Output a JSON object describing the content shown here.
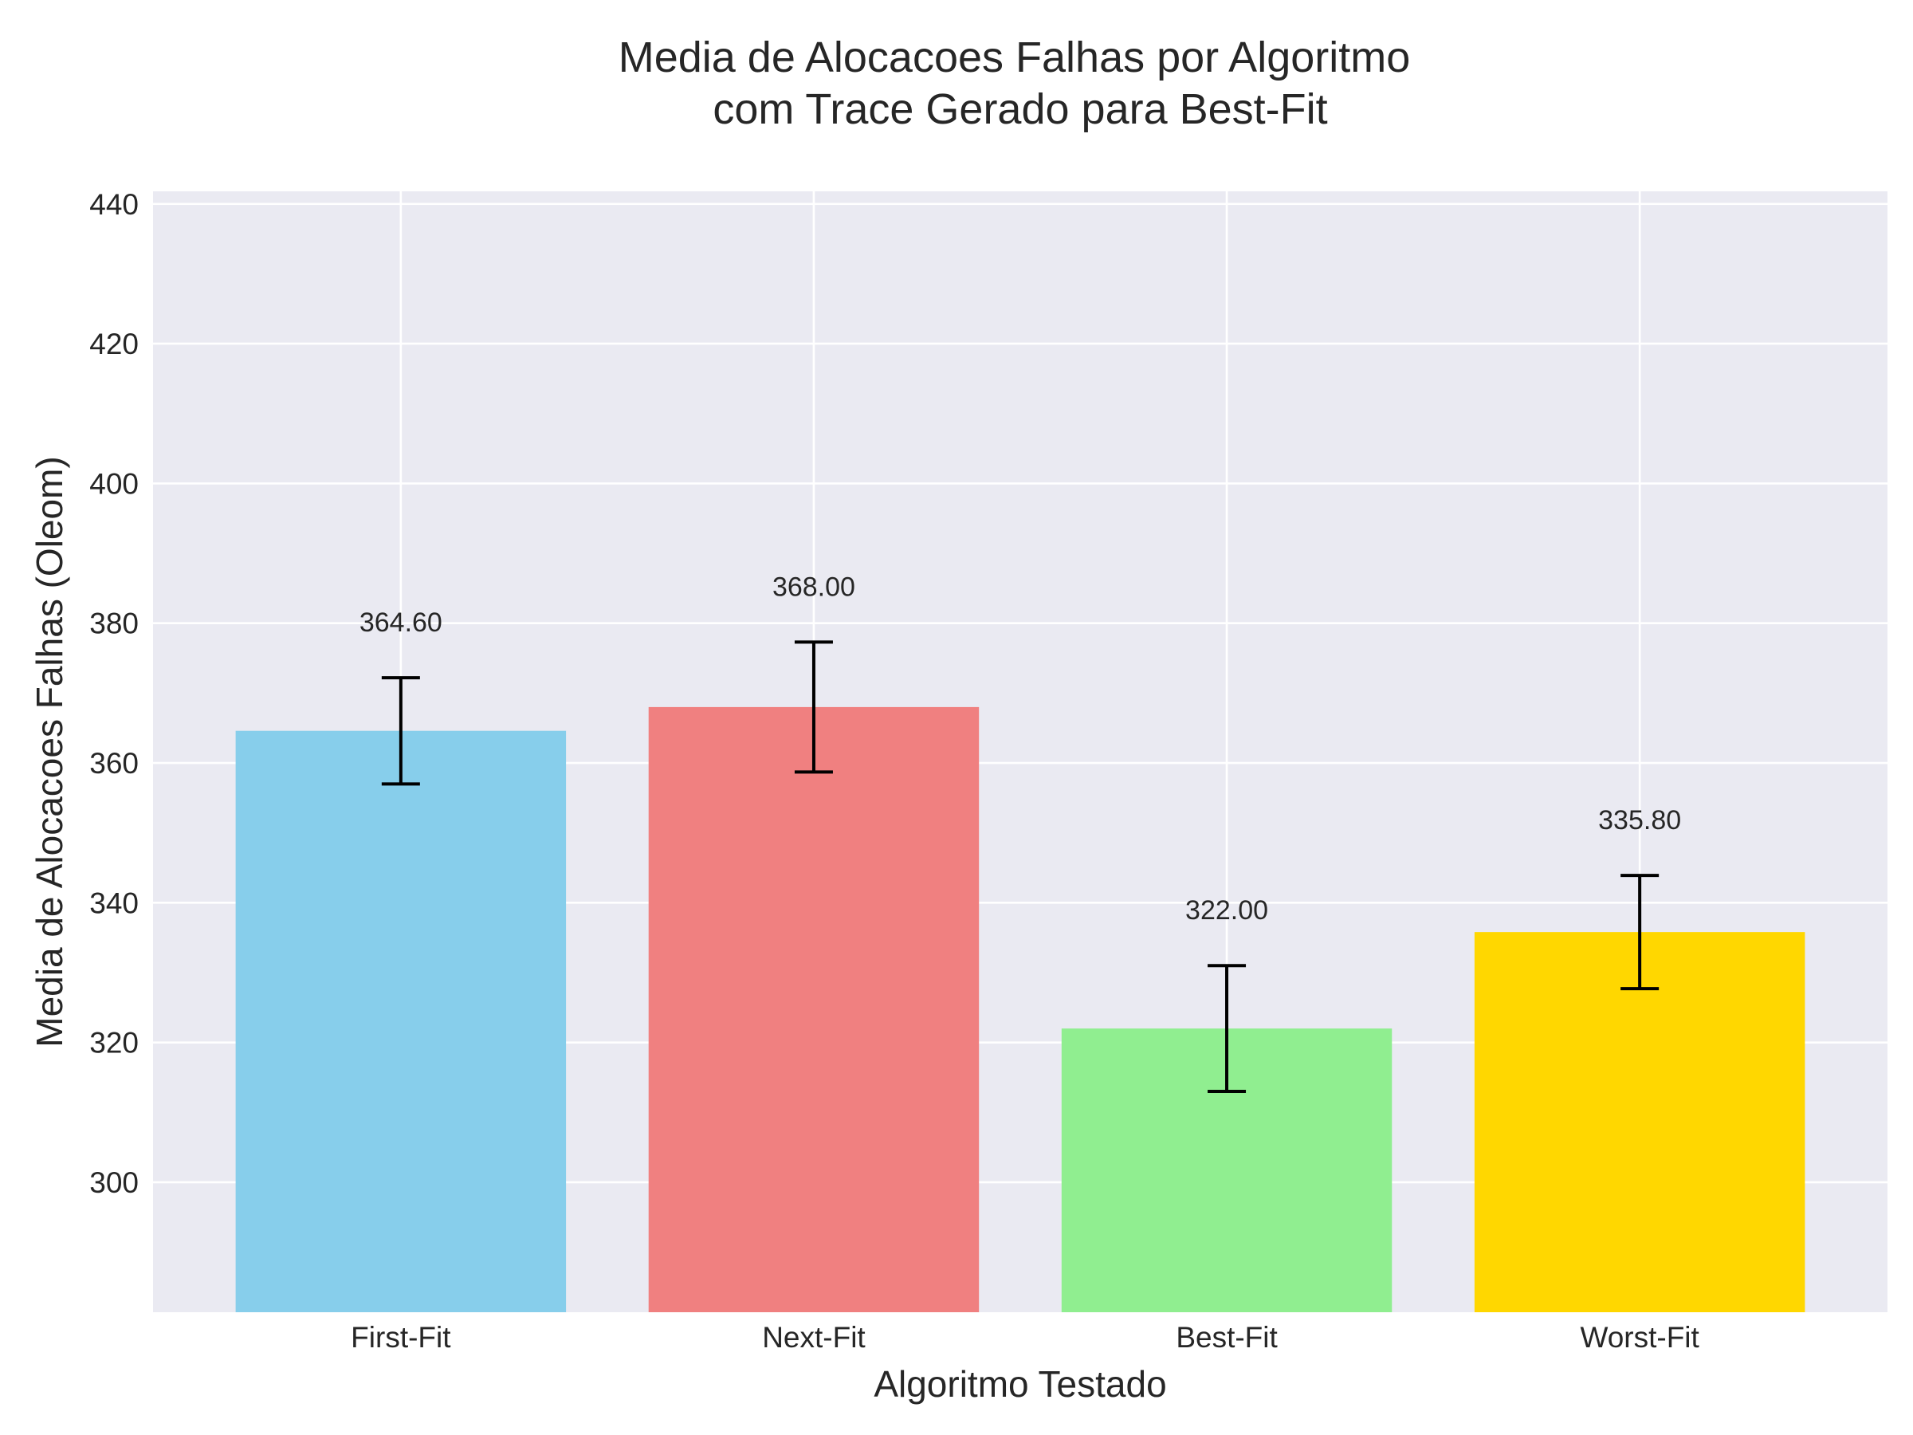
{
  "chart_data": {
    "type": "bar",
    "title": "Media de Alocacoes Falhas por Algoritmo\ncom Trace Gerado para Best-Fit",
    "title_lines": [
      "Media de Alocacoes Falhas por Algoritmo",
      "com Trace Gerado para Best-Fit"
    ],
    "xlabel": "Algoritmo Testado",
    "ylabel": "Media de Alocacoes Falhas (Oleom)",
    "categories": [
      "First-Fit",
      "Next-Fit",
      "Best-Fit",
      "Worst-Fit"
    ],
    "values": [
      364.6,
      368.0,
      322.0,
      335.8
    ],
    "value_labels": [
      "364.60",
      "368.00",
      "322.00",
      "335.80"
    ],
    "errors": [
      7.6,
      9.3,
      9.0,
      8.1
    ],
    "colors": [
      "#87CEEB",
      "#F08080",
      "#90EE90",
      "#FFD700"
    ],
    "ylim": [
      281.4,
      441.8
    ],
    "yticks": [
      300,
      320,
      340,
      360,
      380,
      400,
      420,
      440
    ],
    "grid": true,
    "background": "#EAEAF2",
    "grid_color": "#ffffff",
    "text_color": "#262626",
    "error_color": "#000000"
  }
}
